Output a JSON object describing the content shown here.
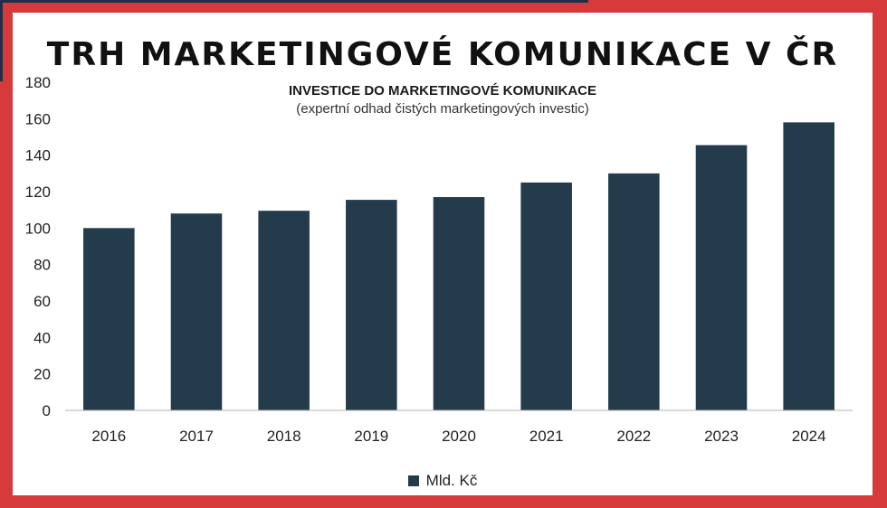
{
  "title": "TRH MARKETINGOVÉ KOMUNIKACE V ČR",
  "colors": {
    "background": "#d63a3a",
    "panel": "#ffffff",
    "bar": "#233b4b",
    "accent": "#1f2f4a"
  },
  "chart_data": {
    "type": "bar",
    "title": "INVESTICE DO MARKETINGOVÉ KOMUNIKACE",
    "subtitle": "(expertní odhad čistých marketingových investic)",
    "categories": [
      "2016",
      "2017",
      "2018",
      "2019",
      "2020",
      "2021",
      "2022",
      "2023",
      "2024"
    ],
    "series": [
      {
        "name": "Mld. Kč",
        "values": [
          100,
          108,
          109.5,
          115.5,
          117,
          125,
          130,
          145.5,
          158
        ]
      }
    ],
    "xlabel": "",
    "ylabel": "",
    "ylim": [
      0,
      180
    ],
    "yticks": [
      "0",
      "20",
      "40",
      "60",
      "80",
      "100",
      "120",
      "140",
      "160",
      "180"
    ],
    "grid": false,
    "legend_position": "bottom"
  }
}
